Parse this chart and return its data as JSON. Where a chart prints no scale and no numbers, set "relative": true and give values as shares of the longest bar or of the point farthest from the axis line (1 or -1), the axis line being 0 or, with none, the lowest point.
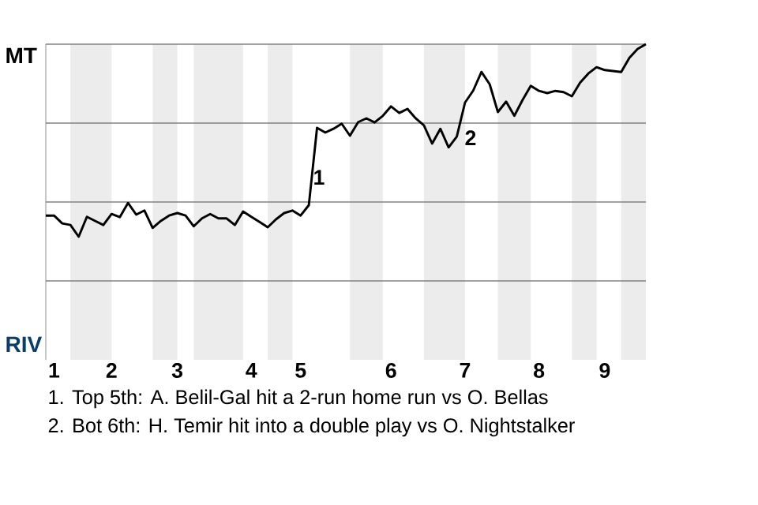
{
  "chart_data": {
    "type": "line",
    "relative": true,
    "categories": [
      null,
      "1",
      null,
      null,
      null,
      null,
      null,
      null,
      "2",
      null,
      null,
      null,
      null,
      null,
      null,
      null,
      "3",
      null,
      null,
      null,
      null,
      null,
      null,
      null,
      null,
      "4",
      null,
      null,
      null,
      null,
      null,
      "5",
      null,
      null,
      null,
      null,
      null,
      null,
      null,
      null,
      null,
      null,
      "6",
      null,
      null,
      null,
      null,
      null,
      null,
      null,
      null,
      "7",
      null,
      null,
      null,
      null,
      null,
      null,
      null,
      null,
      "8",
      null,
      null,
      null,
      null,
      null,
      null,
      null,
      "9",
      null,
      null,
      null,
      null,
      null
    ],
    "series": [
      {
        "color": "#000000",
        "values": [
          0.457,
          0.457,
          0.432,
          0.427,
          0.39,
          0.453,
          0.44,
          0.427,
          0.462,
          0.452,
          0.497,
          0.46,
          0.473,
          0.418,
          0.44,
          0.457,
          0.465,
          0.457,
          0.423,
          0.448,
          0.462,
          0.448,
          0.448,
          0.427,
          0.47,
          0.453,
          0.437,
          0.42,
          0.445,
          0.465,
          0.473,
          0.457,
          0.49,
          0.735,
          0.72,
          0.732,
          0.748,
          0.71,
          0.753,
          0.765,
          0.752,
          0.773,
          0.803,
          0.782,
          0.795,
          0.765,
          0.743,
          0.685,
          0.732,
          0.673,
          0.707,
          0.815,
          0.853,
          0.912,
          0.873,
          0.785,
          0.818,
          0.773,
          0.823,
          0.868,
          0.852,
          0.845,
          0.852,
          0.848,
          0.835,
          0.878,
          0.907,
          0.927,
          0.918,
          0.915,
          0.912,
          0.957,
          0.985,
          1
        ]
      }
    ],
    "ref_lines": [
      {
        "axis": "y",
        "value": 0.25,
        "color": "#828282"
      },
      {
        "axis": "y",
        "value": 0.5,
        "color": "#828282"
      },
      {
        "axis": "y",
        "value": 0.75,
        "color": "#828282"
      },
      {
        "axis": "y",
        "value": 1,
        "color": "#828282"
      }
    ],
    "annotations": [
      "MT",
      "RIV",
      "1",
      "2",
      "1. Top 5th: A. Belil-Gal hit a 2-run home run vs O. Bellas",
      "2. Bot 6th: H. Temir hit into a double play vs O. Nightstalker"
    ]
  }
}
